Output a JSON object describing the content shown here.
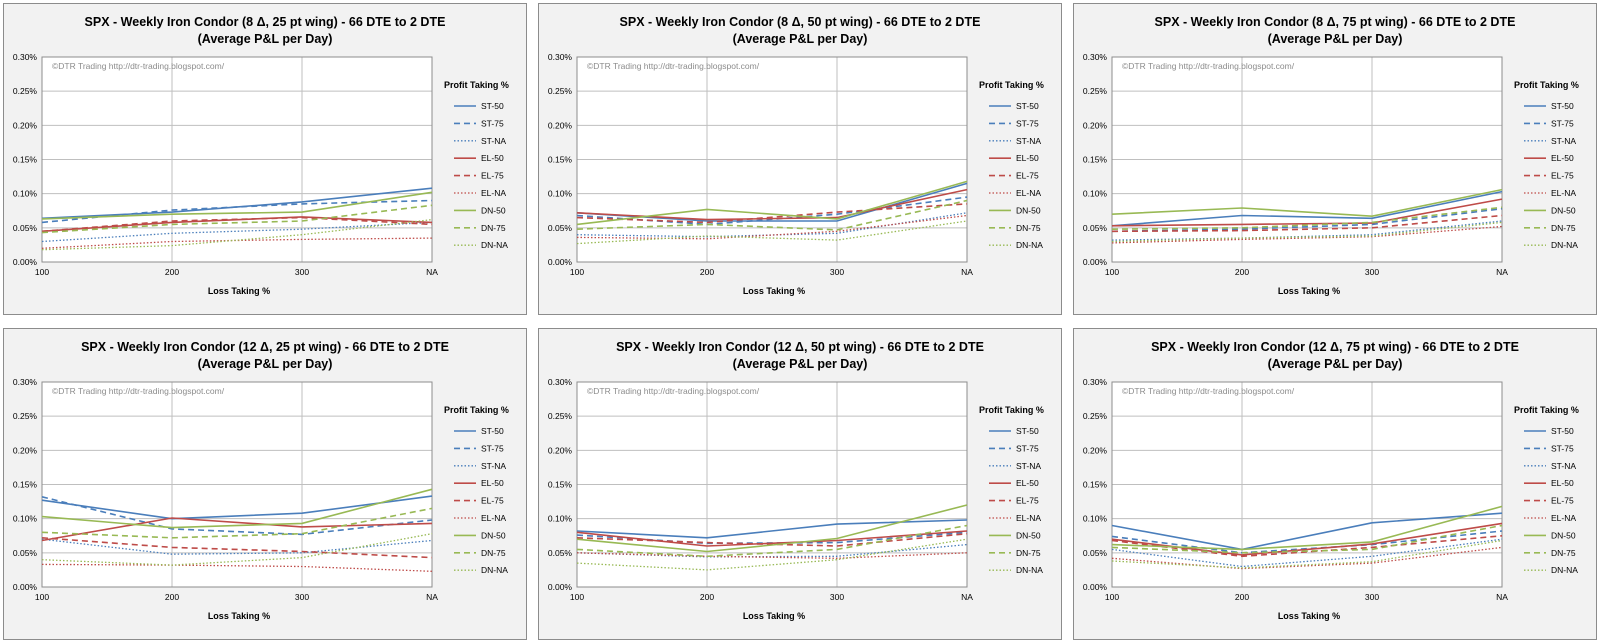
{
  "colors": {
    "ST": "#4a7ebb",
    "EL": "#be4b48",
    "DN": "#98b954"
  },
  "watermark": "©DTR Trading     http://dtr-trading.blogspot.com/",
  "chart_data": [
    {
      "type": "line",
      "title": "SPX - Weekly Iron Condor (8 Δ, 25 pt wing) - 66 DTE to 2 DTE",
      "subtitle": "(Average P&L per Day)",
      "xlabel": "Loss Taking %",
      "legend_title": "Profit Taking  %",
      "legend_position": "right",
      "categories": [
        "100",
        "200",
        "300",
        "NA"
      ],
      "yticks": [
        "0.00%",
        "0.05%",
        "0.10%",
        "0.15%",
        "0.20%",
        "0.25%",
        "0.30%"
      ],
      "ylim": [
        0,
        0.3
      ],
      "grid": true,
      "series": [
        {
          "name": "ST-50",
          "values": [
            0.064,
            0.073,
            0.088,
            0.108
          ]
        },
        {
          "name": "ST-75",
          "values": [
            0.058,
            0.076,
            0.085,
            0.09
          ]
        },
        {
          "name": "ST-NA",
          "values": [
            0.03,
            0.042,
            0.048,
            0.058
          ]
        },
        {
          "name": "EL-50",
          "values": [
            0.045,
            0.058,
            0.066,
            0.058
          ]
        },
        {
          "name": "EL-75",
          "values": [
            0.045,
            0.06,
            0.065,
            0.055
          ]
        },
        {
          "name": "EL-NA",
          "values": [
            0.02,
            0.03,
            0.033,
            0.035
          ]
        },
        {
          "name": "DN-50",
          "values": [
            0.063,
            0.07,
            0.073,
            0.102
          ]
        },
        {
          "name": "DN-75",
          "values": [
            0.043,
            0.055,
            0.06,
            0.083
          ]
        },
        {
          "name": "DN-NA",
          "values": [
            0.018,
            0.024,
            0.04,
            0.062
          ]
        }
      ]
    },
    {
      "type": "line",
      "title": "SPX - Weekly Iron Condor (8 Δ, 50 pt wing) - 66 DTE to 2 DTE",
      "subtitle": "(Average P&L per Day)",
      "xlabel": "Loss Taking %",
      "legend_title": "Profit Taking  %",
      "legend_position": "right",
      "categories": [
        "100",
        "200",
        "300",
        "NA"
      ],
      "yticks": [
        "0.00%",
        "0.05%",
        "0.10%",
        "0.15%",
        "0.20%",
        "0.25%",
        "0.30%"
      ],
      "ylim": [
        0,
        0.3
      ],
      "grid": true,
      "series": [
        {
          "name": "ST-50",
          "values": [
            0.072,
            0.06,
            0.06,
            0.115
          ]
        },
        {
          "name": "ST-75",
          "values": [
            0.068,
            0.055,
            0.07,
            0.095
          ]
        },
        {
          "name": "ST-NA",
          "values": [
            0.04,
            0.037,
            0.042,
            0.072
          ]
        },
        {
          "name": "EL-50",
          "values": [
            0.072,
            0.062,
            0.065,
            0.106
          ]
        },
        {
          "name": "EL-75",
          "values": [
            0.065,
            0.058,
            0.073,
            0.085
          ]
        },
        {
          "name": "EL-NA",
          "values": [
            0.036,
            0.034,
            0.045,
            0.068
          ]
        },
        {
          "name": "DN-50",
          "values": [
            0.055,
            0.077,
            0.063,
            0.118
          ]
        },
        {
          "name": "DN-75",
          "values": [
            0.048,
            0.055,
            0.047,
            0.09
          ]
        },
        {
          "name": "DN-NA",
          "values": [
            0.027,
            0.038,
            0.032,
            0.06
          ]
        }
      ]
    },
    {
      "type": "line",
      "title": "SPX - Weekly Iron Condor (8 Δ, 75 pt wing) - 66 DTE to 2 DTE",
      "subtitle": "(Average P&L per Day)",
      "xlabel": "Loss Taking %",
      "legend_title": "Profit Taking  %",
      "legend_position": "right",
      "categories": [
        "100",
        "200",
        "300",
        "NA"
      ],
      "yticks": [
        "0.00%",
        "0.05%",
        "0.10%",
        "0.15%",
        "0.20%",
        "0.25%",
        "0.30%"
      ],
      "ylim": [
        0,
        0.3
      ],
      "grid": true,
      "series": [
        {
          "name": "ST-50",
          "values": [
            0.053,
            0.068,
            0.064,
            0.103
          ]
        },
        {
          "name": "ST-75",
          "values": [
            0.045,
            0.048,
            0.055,
            0.078
          ]
        },
        {
          "name": "ST-NA",
          "values": [
            0.032,
            0.035,
            0.04,
            0.06
          ]
        },
        {
          "name": "EL-50",
          "values": [
            0.053,
            0.055,
            0.057,
            0.092
          ]
        },
        {
          "name": "EL-75",
          "values": [
            0.045,
            0.046,
            0.05,
            0.068
          ]
        },
        {
          "name": "EL-NA",
          "values": [
            0.028,
            0.033,
            0.037,
            0.052
          ]
        },
        {
          "name": "DN-50",
          "values": [
            0.07,
            0.079,
            0.067,
            0.106
          ]
        },
        {
          "name": "DN-75",
          "values": [
            0.048,
            0.05,
            0.058,
            0.08
          ]
        },
        {
          "name": "DN-NA",
          "values": [
            0.03,
            0.035,
            0.038,
            0.058
          ]
        }
      ]
    },
    {
      "type": "line",
      "title": "SPX - Weekly Iron Condor (12 Δ, 25 pt wing) - 66 DTE to 2 DTE",
      "subtitle": "(Average P&L per Day)",
      "xlabel": "Loss Taking %",
      "legend_title": "Profit Taking  %",
      "legend_position": "right",
      "categories": [
        "100",
        "200",
        "300",
        "NA"
      ],
      "yticks": [
        "0.00%",
        "0.05%",
        "0.10%",
        "0.15%",
        "0.20%",
        "0.25%",
        "0.30%"
      ],
      "ylim": [
        0,
        0.3
      ],
      "grid": true,
      "series": [
        {
          "name": "ST-50",
          "values": [
            0.127,
            0.1,
            0.108,
            0.133
          ]
        },
        {
          "name": "ST-75",
          "values": [
            0.132,
            0.085,
            0.077,
            0.098
          ]
        },
        {
          "name": "ST-NA",
          "values": [
            0.07,
            0.048,
            0.05,
            0.068
          ]
        },
        {
          "name": "EL-50",
          "values": [
            0.068,
            0.101,
            0.088,
            0.093
          ]
        },
        {
          "name": "EL-75",
          "values": [
            0.072,
            0.058,
            0.052,
            0.043
          ]
        },
        {
          "name": "EL-NA",
          "values": [
            0.033,
            0.032,
            0.03,
            0.023
          ]
        },
        {
          "name": "DN-50",
          "values": [
            0.103,
            0.087,
            0.093,
            0.143
          ]
        },
        {
          "name": "DN-75",
          "values": [
            0.08,
            0.072,
            0.078,
            0.115
          ]
        },
        {
          "name": "DN-NA",
          "values": [
            0.04,
            0.032,
            0.043,
            0.078
          ]
        }
      ]
    },
    {
      "type": "line",
      "title": "SPX - Weekly Iron Condor (12 Δ, 50 pt wing) - 66 DTE to 2 DTE",
      "subtitle": "(Average P&L per Day)",
      "xlabel": "Loss Taking %",
      "legend_title": "Profit Taking  %",
      "legend_position": "right",
      "categories": [
        "100",
        "200",
        "300",
        "NA"
      ],
      "yticks": [
        "0.00%",
        "0.05%",
        "0.10%",
        "0.15%",
        "0.20%",
        "0.25%",
        "0.30%"
      ],
      "ylim": [
        0,
        0.3
      ],
      "grid": true,
      "series": [
        {
          "name": "ST-50",
          "values": [
            0.082,
            0.072,
            0.092,
            0.098
          ]
        },
        {
          "name": "ST-75",
          "values": [
            0.076,
            0.064,
            0.065,
            0.08
          ]
        },
        {
          "name": "ST-NA",
          "values": [
            0.05,
            0.044,
            0.045,
            0.062
          ]
        },
        {
          "name": "EL-50",
          "values": [
            0.08,
            0.06,
            0.068,
            0.082
          ]
        },
        {
          "name": "EL-75",
          "values": [
            0.072,
            0.065,
            0.06,
            0.078
          ]
        },
        {
          "name": "EL-NA",
          "values": [
            0.05,
            0.045,
            0.042,
            0.05
          ]
        },
        {
          "name": "DN-50",
          "values": [
            0.07,
            0.052,
            0.071,
            0.12
          ]
        },
        {
          "name": "DN-75",
          "values": [
            0.055,
            0.045,
            0.055,
            0.09
          ]
        },
        {
          "name": "DN-NA",
          "values": [
            0.035,
            0.025,
            0.04,
            0.07
          ]
        }
      ]
    },
    {
      "type": "line",
      "title": "SPX - Weekly Iron Condor (12 Δ, 75 pt wing) - 66 DTE to 2 DTE",
      "subtitle": "(Average P&L per Day)",
      "xlabel": "Loss Taking %",
      "legend_title": "Profit Taking  %",
      "legend_position": "right",
      "categories": [
        "100",
        "200",
        "300",
        "NA"
      ],
      "yticks": [
        "0.00%",
        "0.05%",
        "0.10%",
        "0.15%",
        "0.20%",
        "0.25%",
        "0.30%"
      ],
      "ylim": [
        0,
        0.3
      ],
      "grid": true,
      "series": [
        {
          "name": "ST-50",
          "values": [
            0.09,
            0.055,
            0.094,
            0.108
          ]
        },
        {
          "name": "ST-75",
          "values": [
            0.074,
            0.05,
            0.062,
            0.082
          ]
        },
        {
          "name": "ST-NA",
          "values": [
            0.055,
            0.03,
            0.045,
            0.07
          ]
        },
        {
          "name": "EL-50",
          "values": [
            0.07,
            0.047,
            0.063,
            0.093
          ]
        },
        {
          "name": "EL-75",
          "values": [
            0.068,
            0.045,
            0.058,
            0.075
          ]
        },
        {
          "name": "EL-NA",
          "values": [
            0.042,
            0.027,
            0.035,
            0.058
          ]
        },
        {
          "name": "DN-50",
          "values": [
            0.062,
            0.055,
            0.066,
            0.118
          ]
        },
        {
          "name": "DN-75",
          "values": [
            0.058,
            0.05,
            0.055,
            0.09
          ]
        },
        {
          "name": "DN-NA",
          "values": [
            0.038,
            0.028,
            0.037,
            0.068
          ]
        }
      ]
    }
  ]
}
